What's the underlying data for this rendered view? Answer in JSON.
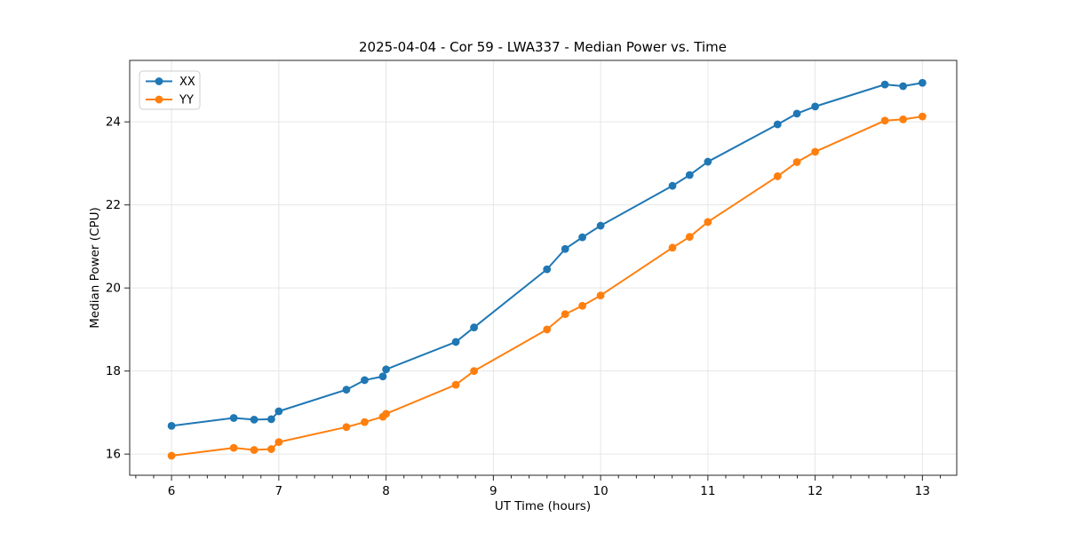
{
  "chart_data": {
    "type": "line",
    "title": "2025-04-04 - Cor 59 - LWA337 - Median Power vs. Time",
    "xlabel": "UT Time (hours)",
    "ylabel": "Median Power (CPU)",
    "xlim": [
      5.61,
      13.32
    ],
    "ylim": [
      15.49,
      25.48
    ],
    "x_ticks": [
      6,
      7,
      8,
      9,
      10,
      11,
      12,
      13
    ],
    "y_ticks": [
      16,
      18,
      20,
      22,
      24
    ],
    "x_minor_tick_step": 0.16667,
    "grid": true,
    "legend_position": "upper-left",
    "x": [
      6.0,
      6.58,
      6.77,
      6.93,
      7.0,
      7.63,
      7.8,
      7.97,
      8.0,
      8.65,
      8.82,
      9.5,
      9.67,
      9.83,
      10.0,
      10.67,
      10.83,
      11.0,
      11.65,
      11.83,
      12.0,
      12.65,
      12.82,
      13.0
    ],
    "series": [
      {
        "name": "XX",
        "color": "#1f77b4",
        "values": [
          16.68,
          16.87,
          16.83,
          16.84,
          17.03,
          17.55,
          17.78,
          17.87,
          18.04,
          18.7,
          19.05,
          20.45,
          20.94,
          21.22,
          21.5,
          22.46,
          22.72,
          23.04,
          23.94,
          24.2,
          24.37,
          24.9,
          24.86,
          24.94
        ]
      },
      {
        "name": "YY",
        "color": "#ff7f0e",
        "values": [
          15.96,
          16.15,
          16.1,
          16.12,
          16.29,
          16.65,
          16.77,
          16.9,
          16.97,
          17.67,
          18.0,
          19.0,
          19.37,
          19.57,
          19.82,
          20.97,
          21.23,
          21.59,
          22.69,
          23.03,
          23.28,
          24.03,
          24.06,
          24.13
        ]
      }
    ]
  }
}
